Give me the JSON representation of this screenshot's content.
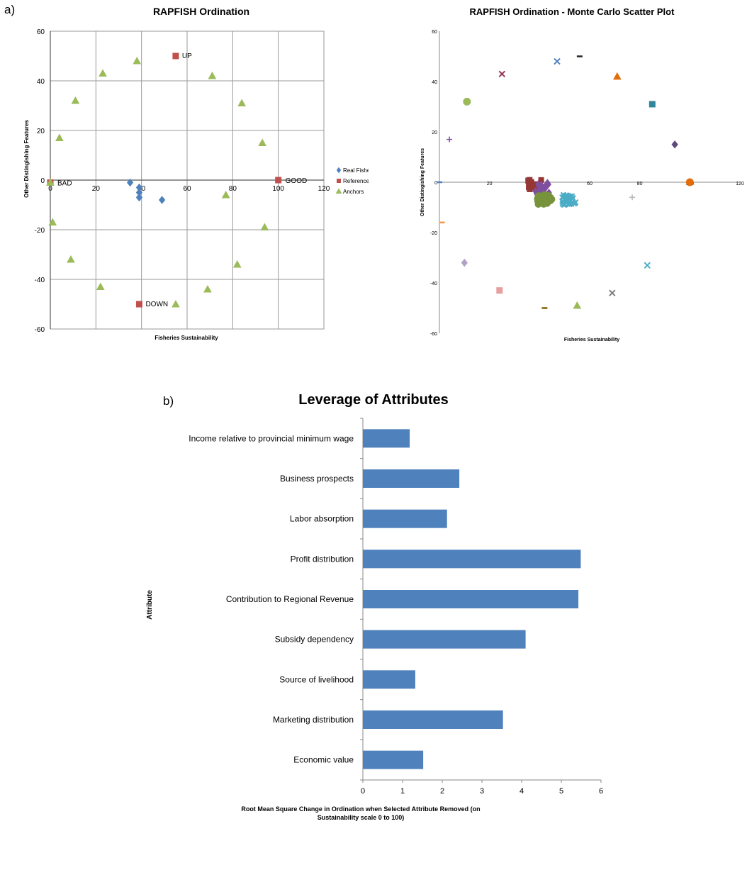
{
  "panel_labels": {
    "a": "a)",
    "b": "b)"
  },
  "chart_data": [
    {
      "type": "scatter",
      "title": "RAPFISH Ordination",
      "xlabel": "Fisheries Sustainability",
      "ylabel": "Other Distingishing Features",
      "xlim": [
        0,
        120
      ],
      "ylim": [
        -60,
        60
      ],
      "xticks": [
        0,
        20,
        40,
        60,
        80,
        100,
        120
      ],
      "yticks": [
        -60,
        -40,
        -20,
        0,
        20,
        40,
        60
      ],
      "grid": true,
      "legend_position": "right",
      "series": [
        {
          "name": "Real Fisheries",
          "color": "#4f81bd",
          "marker": "diamond",
          "points": [
            [
              35,
              -1
            ],
            [
              39,
              -3
            ],
            [
              39,
              -5
            ],
            [
              39,
              -7
            ],
            [
              49,
              -8
            ]
          ]
        },
        {
          "name": "References",
          "color": "#c0504d",
          "marker": "square",
          "points": [
            [
              0,
              -1
            ],
            [
              100,
              0
            ],
            [
              55,
              50
            ],
            [
              39,
              -50
            ]
          ]
        },
        {
          "name": "Anchors",
          "color": "#9bbb59",
          "marker": "triangle",
          "points": [
            [
              0,
              -1
            ],
            [
              1,
              -17
            ],
            [
              4,
              17
            ],
            [
              9,
              -32
            ],
            [
              11,
              32
            ],
            [
              22,
              -43
            ],
            [
              23,
              43
            ],
            [
              38,
              48
            ],
            [
              55,
              -50
            ],
            [
              69,
              -44
            ],
            [
              71,
              42
            ],
            [
              77,
              -6
            ],
            [
              82,
              -34
            ],
            [
              84,
              31
            ],
            [
              93,
              15
            ],
            [
              94,
              -19
            ]
          ]
        }
      ],
      "annotations": [
        {
          "text": "UP",
          "x": 55,
          "y": 50
        },
        {
          "text": "DOWN",
          "x": 39,
          "y": -50
        },
        {
          "text": "BAD",
          "x": 0,
          "y": -1
        },
        {
          "text": "GOOD",
          "x": 100,
          "y": 0
        }
      ]
    },
    {
      "type": "scatter",
      "title": "RAPFISH Ordination - Monte Carlo Scatter Plot",
      "xlabel": "Fisheries Sustainability",
      "ylabel": "Other Distingishing Features",
      "xlim": [
        0,
        120
      ],
      "ylim": [
        -60,
        60
      ],
      "xticks": [
        0,
        20,
        40,
        60,
        80,
        100,
        120
      ],
      "yticks": [
        -60,
        -40,
        -20,
        0,
        20,
        40,
        60
      ],
      "grid": false,
      "markers": [
        {
          "x": 4,
          "y": 17,
          "color": "#7f4f9f",
          "marker": "plus"
        },
        {
          "x": 11,
          "y": 32,
          "color": "#9bbb59",
          "marker": "circle"
        },
        {
          "x": 25,
          "y": 43,
          "color": "#953553",
          "marker": "x"
        },
        {
          "x": 47,
          "y": 48,
          "color": "#4f81bd",
          "marker": "x"
        },
        {
          "x": 56,
          "y": 50,
          "color": "#222222",
          "marker": "dash"
        },
        {
          "x": 71,
          "y": 42,
          "color": "#e46c0a",
          "marker": "triangle"
        },
        {
          "x": 85,
          "y": 31,
          "color": "#31859c",
          "marker": "square"
        },
        {
          "x": 94,
          "y": 15,
          "color": "#5f497a",
          "marker": "diamond"
        },
        {
          "x": 100,
          "y": 0,
          "color": "#e46c0a",
          "marker": "circle"
        },
        {
          "x": 77,
          "y": -6,
          "color": "#b7b7b7",
          "marker": "plus"
        },
        {
          "x": 83,
          "y": -33,
          "color": "#4bacc6",
          "marker": "x"
        },
        {
          "x": 69,
          "y": -44,
          "color": "#7f7f7f",
          "marker": "x"
        },
        {
          "x": 55,
          "y": -49,
          "color": "#9bbb59",
          "marker": "triangle"
        },
        {
          "x": 42,
          "y": -50,
          "color": "#7f6000",
          "marker": "dash"
        },
        {
          "x": 24,
          "y": -43,
          "color": "#e6a0a0",
          "marker": "square"
        },
        {
          "x": 10,
          "y": -32,
          "color": "#b3a2c7",
          "marker": "diamond"
        },
        {
          "x": 1,
          "y": -16,
          "color": "#f79646",
          "marker": "dash"
        },
        {
          "x": 0,
          "y": 0,
          "color": "#4f81bd",
          "marker": "dash"
        }
      ],
      "clusters": [
        {
          "name": "",
          "color": "#953735",
          "marker": "square",
          "cx": 38,
          "cy": -1,
          "spread_x": 3,
          "spread_y": 2,
          "n": 22
        },
        {
          "name": "",
          "color": "#7f4f9f",
          "marker": "diamond",
          "cx": 41,
          "cy": -3,
          "spread_x": 3,
          "spread_y": 3,
          "n": 22
        },
        {
          "name": "",
          "color": "#4bacc6",
          "marker": "x",
          "cx": 52,
          "cy": -7,
          "spread_x": 3,
          "spread_y": 2,
          "n": 30
        },
        {
          "name": "",
          "color": "#77933c",
          "marker": "circle",
          "cx": 42,
          "cy": -7,
          "spread_x": 3,
          "spread_y": 2,
          "n": 26
        }
      ]
    },
    {
      "type": "bar",
      "orientation": "horizontal",
      "title": "Leverage of Attributes",
      "xlabel": "Root Mean Square Change in Ordination when Selected Attribute Removed (on Sustainability scale 0 to 100)",
      "ylabel": "Attribute",
      "xlim": [
        0,
        6
      ],
      "xticks": [
        0,
        1,
        2,
        3,
        4,
        5,
        6
      ],
      "bar_color": "#4f81bd",
      "grid": false,
      "categories": [
        "Income relative to provincial minimum wage",
        "Business prospects",
        "Labor absorption",
        "Profit distribution",
        "Contribution to Regional Revenue",
        "Subsidy dependency",
        "Source of livelihood",
        "Marketing distribution",
        "Economic value"
      ],
      "values": [
        1.18,
        2.43,
        2.12,
        5.49,
        5.43,
        4.1,
        1.32,
        3.53,
        1.52
      ]
    }
  ]
}
